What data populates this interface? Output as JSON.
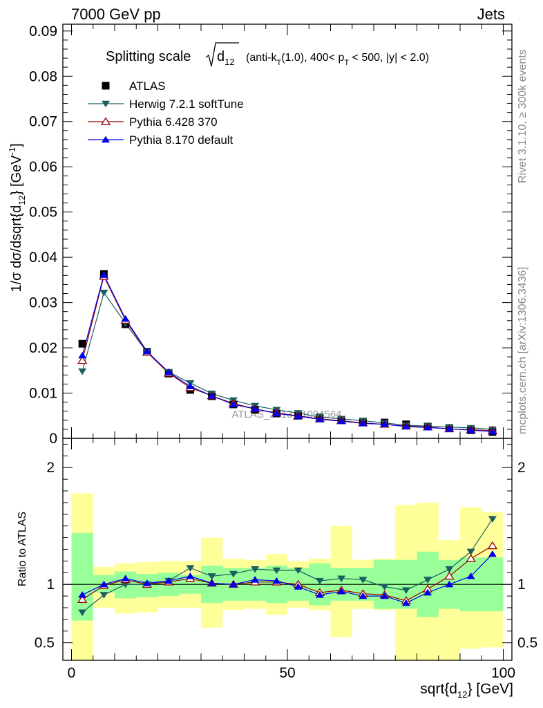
{
  "header": {
    "left": "7000 GeV pp",
    "right": "Jets"
  },
  "side_texts": {
    "rivet": "Rivet 3.1.10, ≥ 300k events",
    "mcplots": "mcplots.cern.ch [arXiv:1306.3436]"
  },
  "chart_data": [
    {
      "type": "scatter",
      "panel": "main",
      "title": {
        "main": "Splitting scale",
        "d": "d",
        "d_sub": "12",
        "sel1": "(anti-k",
        "sel1_sub": "T",
        "sel2": "(1.0), 400< p",
        "sel2_sub": "T",
        "sel3": " < 500, |y| < 2.0)"
      },
      "ylabel": {
        "main": "1/σ dσ/dsqrt{d",
        "sub": "12",
        "rest": "} [GeV",
        "sup": "-1",
        "close": "]"
      },
      "xlim": [
        -2,
        102
      ],
      "ylim": [
        0,
        0.0915
      ],
      "yticks": [
        0,
        0.01,
        0.02,
        0.03,
        0.04,
        0.05,
        0.06,
        0.07,
        0.08,
        0.09
      ],
      "ytick_labels": [
        "0",
        "0.01",
        "0.02",
        "0.03",
        "0.04",
        "0.05",
        "0.06",
        "0.07",
        "0.08",
        "0.09"
      ],
      "watermark": "ATLAS_2013_I1094564",
      "x": [
        2.5,
        7.5,
        12.5,
        17.5,
        22.5,
        27.5,
        32.5,
        37.5,
        42.5,
        47.5,
        52.5,
        57.5,
        62.5,
        67.5,
        72.5,
        77.5,
        82.5,
        87.5,
        92.5,
        97.5
      ],
      "legend": {
        "position": "top-left",
        "entries": [
          "ATLAS",
          "Herwig 7.2.1 softTune",
          "Pythia 6.428 370",
          "Pythia 8.170 default"
        ]
      },
      "series": [
        {
          "name": "ATLAS",
          "color": "#000000",
          "marker": "square",
          "values": [
            0.0209,
            0.0363,
            0.0252,
            0.0191,
            0.0143,
            0.0107,
            0.0093,
            0.0075,
            0.0063,
            0.0055,
            0.005,
            0.0046,
            0.0041,
            0.0037,
            0.0035,
            0.0031,
            0.0026,
            0.0022,
            0.0018,
            0.0014
          ]
        },
        {
          "name": "Herwig 7.2.1 softTune",
          "color": "#1a6060",
          "marker": "triangle-down",
          "values": [
            0.0148,
            0.0322,
            0.0254,
            0.019,
            0.0147,
            0.0122,
            0.0099,
            0.0084,
            0.0072,
            0.0063,
            0.0056,
            0.0047,
            0.0043,
            0.0039,
            0.0034,
            0.0029,
            0.0027,
            0.0025,
            0.0023,
            0.002
          ]
        },
        {
          "name": "Pythia 6.428 370",
          "color": "#990000",
          "marker": "triangle-up-open",
          "values": [
            0.0172,
            0.0358,
            0.0261,
            0.019,
            0.0144,
            0.0112,
            0.0094,
            0.0077,
            0.0065,
            0.0056,
            0.005,
            0.0043,
            0.0039,
            0.0034,
            0.0031,
            0.0027,
            0.0025,
            0.0021,
            0.0019,
            0.0017
          ]
        },
        {
          "name": "Pythia 8.170 default",
          "color": "#0000ee",
          "marker": "triangle-up",
          "values": [
            0.0183,
            0.0361,
            0.0264,
            0.0192,
            0.0146,
            0.0115,
            0.0094,
            0.0075,
            0.0065,
            0.0055,
            0.0049,
            0.0042,
            0.0038,
            0.0033,
            0.0031,
            0.0026,
            0.0024,
            0.0021,
            0.0018,
            0.0015
          ]
        }
      ]
    },
    {
      "type": "scatter",
      "panel": "ratio",
      "ylabel": "Ratio to ATLAS",
      "xlabel": {
        "main": "sqrt{d",
        "sub": "12",
        "rest": "} [GeV]"
      },
      "xlim": [
        -2,
        102
      ],
      "ylim": [
        0.35,
        2.25
      ],
      "reference_line": 1,
      "xticks": [
        0,
        50,
        100
      ],
      "xtick_labels": [
        "0",
        "50",
        "100"
      ],
      "yticks": [
        0.5,
        1,
        2
      ],
      "ytick_labels": [
        "0.5",
        "1",
        "2"
      ],
      "bin_edges": [
        0,
        5,
        10,
        15,
        20,
        25,
        30,
        35,
        40,
        45,
        50,
        55,
        60,
        65,
        70,
        75,
        80,
        85,
        90,
        95,
        100
      ],
      "band_stat": [
        [
          0.69,
          1.44
        ],
        [
          0.93,
          1.08
        ],
        [
          0.88,
          1.11
        ],
        [
          0.89,
          1.09
        ],
        [
          0.9,
          1.1
        ],
        [
          0.92,
          1.08
        ],
        [
          0.84,
          1.16
        ],
        [
          0.86,
          1.14
        ],
        [
          0.86,
          1.14
        ],
        [
          0.84,
          1.16
        ],
        [
          0.86,
          1.14
        ],
        [
          0.82,
          1.18
        ],
        [
          0.86,
          1.14
        ],
        [
          0.86,
          1.14
        ],
        [
          0.79,
          1.21
        ],
        [
          0.79,
          1.21
        ],
        [
          0.72,
          1.28
        ],
        [
          0.79,
          1.21
        ],
        [
          0.77,
          1.23
        ],
        [
          0.77,
          1.23
        ]
      ],
      "band_total": [
        [
          0.1,
          1.78
        ],
        [
          0.8,
          1.15
        ],
        [
          0.75,
          1.18
        ],
        [
          0.76,
          1.19
        ],
        [
          0.8,
          1.2
        ],
        [
          0.8,
          1.2
        ],
        [
          0.63,
          1.4
        ],
        [
          0.78,
          1.22
        ],
        [
          0.79,
          1.21
        ],
        [
          0.74,
          1.26
        ],
        [
          0.8,
          1.2
        ],
        [
          0.78,
          1.22
        ],
        [
          0.55,
          1.5
        ],
        [
          0.79,
          1.21
        ],
        [
          0.78,
          1.22
        ],
        [
          0.1,
          1.68
        ],
        [
          0.1,
          1.7
        ],
        [
          0.1,
          1.38
        ],
        [
          0.45,
          1.66
        ],
        [
          0.46,
          1.62
        ]
      ],
      "band_colors": {
        "stat": "#99ff99",
        "total": "#ffff99"
      },
      "x": [
        2.5,
        7.5,
        12.5,
        17.5,
        22.5,
        27.5,
        32.5,
        37.5,
        42.5,
        47.5,
        52.5,
        57.5,
        62.5,
        67.5,
        72.5,
        77.5,
        82.5,
        87.5,
        92.5,
        97.5
      ],
      "series": [
        {
          "name": "Herwig 7.2.1 softTune",
          "color": "#1a6060",
          "marker": "triangle-down",
          "values": [
            0.76,
            0.91,
            1.0,
            1.0,
            1.03,
            1.14,
            1.07,
            1.09,
            1.13,
            1.12,
            1.12,
            1.03,
            1.05,
            1.04,
            0.98,
            0.95,
            1.04,
            1.13,
            1.28,
            1.56
          ]
        },
        {
          "name": "Pythia 6.428 370",
          "color": "#990000",
          "marker": "triangle-up-open",
          "values": [
            0.87,
            0.99,
            1.04,
            1.0,
            1.02,
            1.05,
            1.01,
            1.0,
            1.02,
            1.02,
            1.0,
            0.93,
            0.95,
            0.92,
            0.91,
            0.86,
            0.96,
            1.07,
            1.22,
            1.33
          ]
        },
        {
          "name": "Pythia 8.170 default",
          "color": "#0000ee",
          "marker": "triangle-up",
          "values": [
            0.91,
            1.0,
            1.05,
            1.01,
            1.03,
            1.07,
            1.01,
            1.0,
            1.04,
            1.03,
            0.98,
            0.91,
            0.94,
            0.9,
            0.9,
            0.84,
            0.93,
            1.0,
            1.07,
            1.26
          ]
        }
      ]
    }
  ]
}
